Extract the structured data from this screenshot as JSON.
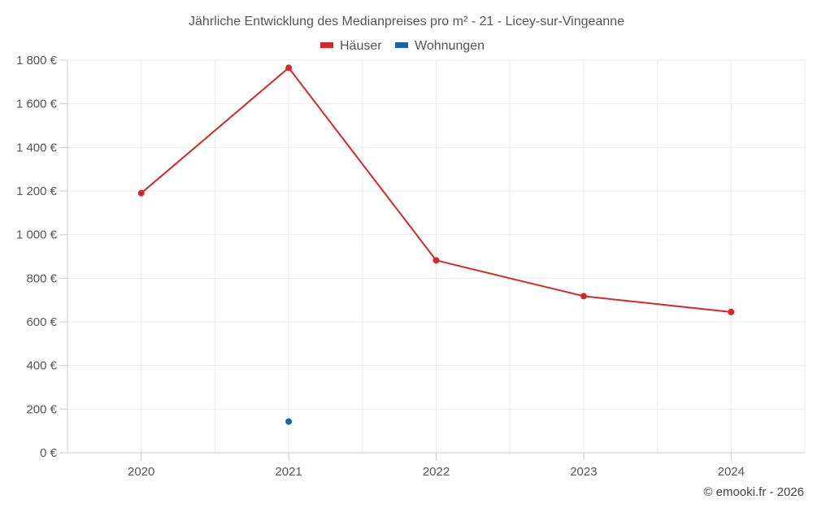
{
  "chart_data": {
    "type": "line",
    "title": "Jährliche Entwicklung des Medianpreises pro m² - 21 - Licey-sur-Vingeanne",
    "categories": [
      "2020",
      "2021",
      "2022",
      "2023",
      "2024"
    ],
    "ylim": [
      0,
      1800
    ],
    "y_ticks": [
      0,
      200,
      400,
      600,
      800,
      1000,
      1200,
      1400,
      1600,
      1800
    ],
    "y_tick_labels": [
      "0 €",
      "200 €",
      "400 €",
      "600 €",
      "800 €",
      "1 000 €",
      "1 200 €",
      "1 400 €",
      "1 600 €",
      "1 800 €"
    ],
    "grid": true,
    "legend_position": "top-center",
    "series": [
      {
        "name": "Häuser",
        "color": "#d62728",
        "values": [
          1190,
          1765,
          882,
          718,
          645
        ]
      },
      {
        "name": "Wohnungen",
        "color": "#1565a7",
        "values": [
          null,
          143,
          null,
          null,
          null
        ]
      }
    ]
  },
  "credit": "© emooki.fr - 2026"
}
